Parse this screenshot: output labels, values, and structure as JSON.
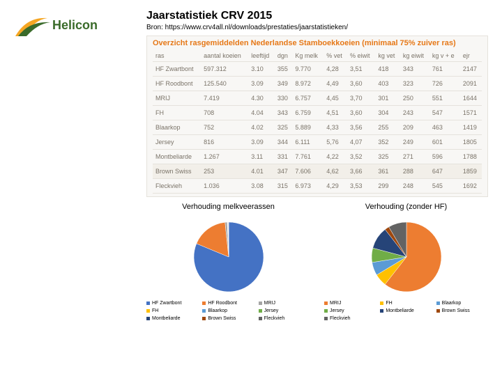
{
  "logo": {
    "text": "Helicon"
  },
  "header": {
    "title": "Jaarstatistiek CRV 2015",
    "source": "Bron: https://www.crv4all.nl/downloads/prestaties/jaarstatistieken/"
  },
  "table": {
    "heading": "Overzicht rasgemiddelden Nederlandse Stamboekkoeien (minimaal 75% zuiver ras)",
    "columns": [
      "ras",
      "aantal koeien",
      "leeftijd",
      "dgn",
      "Kg melk",
      "% vet",
      "% eiwit",
      "kg vet",
      "kg eiwit",
      "kg v + e",
      "ejr"
    ],
    "rows": [
      [
        "HF Zwartbont",
        "597.312",
        "3.10",
        "355",
        "9.770",
        "4,28",
        "3,51",
        "418",
        "343",
        "761",
        "2147"
      ],
      [
        "HF Roodbont",
        "125.540",
        "3.09",
        "349",
        "8.972",
        "4,49",
        "3,60",
        "403",
        "323",
        "726",
        "2091"
      ],
      [
        "MRIJ",
        "7.419",
        "4.30",
        "330",
        "6.757",
        "4,45",
        "3,70",
        "301",
        "250",
        "551",
        "1644"
      ],
      [
        "FH",
        "708",
        "4.04",
        "343",
        "6.759",
        "4,51",
        "3,60",
        "304",
        "243",
        "547",
        "1571"
      ],
      [
        "Blaarkop",
        "752",
        "4.02",
        "325",
        "5.889",
        "4,33",
        "3,56",
        "255",
        "209",
        "463",
        "1419"
      ],
      [
        "Jersey",
        "816",
        "3.09",
        "344",
        "6.111",
        "5,76",
        "4,07",
        "352",
        "249",
        "601",
        "1805"
      ],
      [
        "Montbeliarde",
        "1.267",
        "3.11",
        "331",
        "7.761",
        "4,22",
        "3,52",
        "325",
        "271",
        "596",
        "1788"
      ],
      [
        "Brown Swiss",
        "253",
        "4.01",
        "347",
        "7.606",
        "4,62",
        "3,66",
        "361",
        "288",
        "647",
        "1859"
      ],
      [
        "Fleckvieh",
        "1.036",
        "3.08",
        "315",
        "6.973",
        "4,29",
        "3,53",
        "299",
        "248",
        "545",
        "1692"
      ]
    ]
  },
  "chart1": {
    "title": "Verhouding melkveerassen",
    "type": "pie",
    "labels": [
      "HF Zwartbont",
      "HF Roodbont",
      "MRIJ",
      "FH",
      "Blaarkop",
      "Jersey",
      "Montbeliarde",
      "Brown Swiss",
      "Fleckvieh"
    ],
    "values": [
      597312,
      125540,
      7419,
      708,
      752,
      816,
      1267,
      253,
      1036
    ],
    "colors": [
      "#4472c4",
      "#ed7d31",
      "#a5a5a5",
      "#ffc000",
      "#5b9bd5",
      "#70ad47",
      "#264478",
      "#9e480e",
      "#636363"
    ]
  },
  "chart2": {
    "title": "Verhouding (zonder HF)",
    "type": "pie",
    "labels": [
      "MRIJ",
      "FH",
      "Blaarkop",
      "Jersey",
      "Montbeliarde",
      "Brown Swiss",
      "Fleckvieh"
    ],
    "values": [
      7419,
      708,
      752,
      816,
      1267,
      253,
      1036
    ],
    "colors": [
      "#ed7d31",
      "#ffc000",
      "#5b9bd5",
      "#70ad47",
      "#264478",
      "#9e480e",
      "#636363"
    ]
  }
}
